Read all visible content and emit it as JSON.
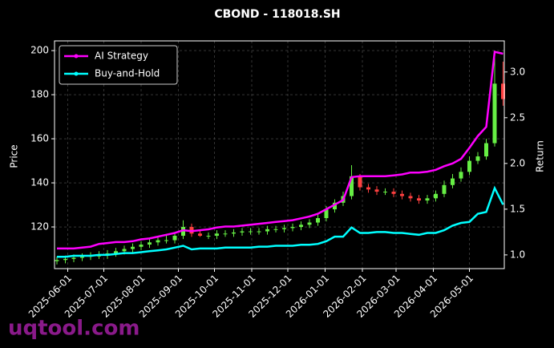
{
  "chart_data": {
    "type": "candlestick",
    "title": "CBOND - 118018.SH",
    "ylabel": "Price",
    "y2label": "Return",
    "watermark": "uqtool.com",
    "x": [
      "2025-05-23",
      "2025-05-30",
      "2025-06-06",
      "2025-06-13",
      "2025-06-20",
      "2025-06-27",
      "2025-07-04",
      "2025-07-11",
      "2025-07-18",
      "2025-07-25",
      "2025-08-01",
      "2025-08-08",
      "2025-08-15",
      "2025-08-22",
      "2025-08-29",
      "2025-09-05",
      "2025-09-12",
      "2025-09-19",
      "2025-09-26",
      "2025-10-03",
      "2025-10-10",
      "2025-10-17",
      "2025-10-24",
      "2025-10-31",
      "2025-11-07",
      "2025-11-14",
      "2025-11-21",
      "2025-11-28",
      "2025-12-05",
      "2025-12-12",
      "2025-12-19",
      "2025-12-26",
      "2026-01-02",
      "2026-01-09",
      "2026-01-16",
      "2026-01-23",
      "2026-01-30",
      "2026-02-06",
      "2026-02-13",
      "2026-02-20",
      "2026-02-27",
      "2026-03-06",
      "2026-03-13",
      "2026-03-20",
      "2026-03-27",
      "2026-04-03",
      "2026-04-10",
      "2026-04-17",
      "2026-04-24",
      "2026-05-01",
      "2026-05-08",
      "2026-05-15",
      "2026-05-22",
      "2026-05-29"
    ],
    "open": [
      104.5,
      105,
      105.5,
      106,
      106.5,
      107,
      107,
      108,
      109,
      110,
      111,
      112,
      113,
      114,
      114,
      116,
      120,
      117,
      116,
      116,
      117,
      117,
      117.5,
      118,
      118,
      118,
      119,
      119,
      119.5,
      120,
      121,
      122,
      124,
      128,
      131,
      134,
      143,
      138,
      137,
      136,
      136,
      135,
      134,
      133,
      132,
      133,
      135,
      139,
      142,
      145,
      150,
      152,
      158,
      185
    ],
    "high": [
      106.5,
      107,
      107.5,
      108,
      108.5,
      109,
      109.5,
      110.5,
      111.5,
      112.5,
      113.5,
      114.5,
      115.5,
      116,
      117.5,
      123,
      121.5,
      118.5,
      117.5,
      118.5,
      118.5,
      119,
      119.5,
      119.5,
      119.5,
      120.5,
      120.5,
      121,
      121.5,
      122.5,
      123.5,
      125.5,
      129.5,
      132.5,
      136,
      148,
      144,
      139.5,
      138.5,
      137.5,
      137.5,
      136.5,
      135.5,
      134.5,
      134.5,
      136.5,
      141,
      144,
      147,
      152,
      154,
      160,
      200,
      195
    ],
    "low": [
      103,
      103.5,
      104,
      104.5,
      105,
      105.5,
      105.5,
      106.5,
      107.5,
      108.5,
      109.5,
      110.5,
      111.5,
      112.5,
      112.5,
      114.5,
      115.5,
      115.5,
      114.5,
      114.5,
      115.5,
      115.5,
      116,
      116.5,
      116.5,
      116.5,
      117.5,
      117.5,
      118,
      118.5,
      119.5,
      120.5,
      122.5,
      126.5,
      129.5,
      132.5,
      136.5,
      135.5,
      134.5,
      134.5,
      133.5,
      132.5,
      131.5,
      130.5,
      130.5,
      131.5,
      133.5,
      137.5,
      140.5,
      143.5,
      148.5,
      150.5,
      156.5,
      175
    ],
    "close": [
      105,
      105.5,
      106,
      106.5,
      107,
      107,
      108,
      109,
      110,
      111,
      112,
      113,
      114,
      114,
      116,
      120,
      117,
      116,
      116,
      117,
      117,
      117.5,
      118,
      118,
      118,
      119,
      119,
      119.5,
      120,
      121,
      122,
      124,
      128,
      131,
      134,
      143,
      138,
      137,
      136,
      136,
      135,
      134,
      133,
      132,
      133,
      135,
      139,
      142,
      145,
      150,
      152,
      158,
      185,
      178
    ],
    "up_color": "#66ee44",
    "down_color": "#ff4040",
    "series": [
      {
        "name": "AI Strategy",
        "color": "#ff00ff",
        "axis": "y2",
        "values": [
          1.07,
          1.07,
          1.07,
          1.08,
          1.09,
          1.12,
          1.13,
          1.14,
          1.14,
          1.15,
          1.17,
          1.18,
          1.2,
          1.22,
          1.24,
          1.27,
          1.26,
          1.27,
          1.28,
          1.3,
          1.31,
          1.31,
          1.32,
          1.33,
          1.34,
          1.35,
          1.36,
          1.37,
          1.38,
          1.4,
          1.42,
          1.45,
          1.5,
          1.55,
          1.6,
          1.85,
          1.86,
          1.86,
          1.86,
          1.86,
          1.87,
          1.88,
          1.9,
          1.9,
          1.91,
          1.93,
          1.97,
          2.0,
          2.05,
          2.17,
          2.3,
          2.4,
          3.22,
          3.2
        ]
      },
      {
        "name": "Buy-and-Hold",
        "color": "#00ffff",
        "axis": "y2",
        "values": [
          0.98,
          0.98,
          0.99,
          0.99,
          0.99,
          1.0,
          1.0,
          1.01,
          1.02,
          1.02,
          1.03,
          1.04,
          1.05,
          1.06,
          1.08,
          1.1,
          1.06,
          1.07,
          1.07,
          1.07,
          1.08,
          1.08,
          1.08,
          1.08,
          1.09,
          1.09,
          1.1,
          1.1,
          1.1,
          1.11,
          1.11,
          1.12,
          1.15,
          1.2,
          1.2,
          1.3,
          1.24,
          1.24,
          1.25,
          1.25,
          1.24,
          1.24,
          1.23,
          1.22,
          1.24,
          1.24,
          1.27,
          1.32,
          1.35,
          1.36,
          1.45,
          1.47,
          1.73,
          1.55
        ]
      }
    ],
    "xlim": [
      "2025-05-21",
      "2026-05-30"
    ],
    "xticks": [
      "2025-06-01",
      "2025-07-01",
      "2025-08-01",
      "2025-09-01",
      "2025-10-01",
      "2025-11-01",
      "2025-12-01",
      "2026-01-01",
      "2026-02-01",
      "2026-03-01",
      "2026-04-01",
      "2026-05-01"
    ],
    "ylim": [
      101.1,
      204.4
    ],
    "yticks": [
      120,
      140,
      160,
      180,
      200
    ],
    "y2lim": [
      0.85,
      3.34
    ],
    "y2ticks": [
      {
        "value": 1,
        "label": "1.0"
      },
      1.5,
      {
        "value": 2,
        "label": "2.0"
      },
      2.5,
      {
        "value": 3,
        "label": "3.0"
      }
    ],
    "grid": true,
    "legend": "upper left"
  }
}
